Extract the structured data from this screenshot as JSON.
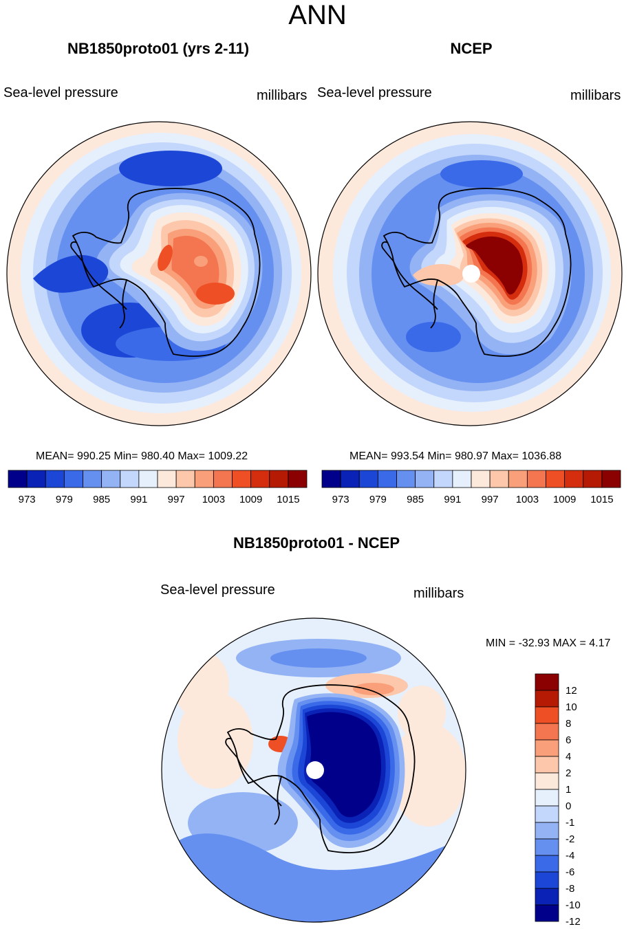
{
  "figure": {
    "title": "ANN"
  },
  "panels": {
    "model": {
      "title": "NB1850proto01 (yrs 2-11)",
      "variable": "Sea-level pressure",
      "units": "millibars",
      "stats": "MEAN= 990.25  Min= 980.40  Max= 1009.22"
    },
    "obs": {
      "title": "NCEP",
      "variable": "Sea-level pressure",
      "units": "millibars",
      "stats": "MEAN= 993.54  Min= 980.97  Max= 1036.88"
    },
    "diff": {
      "title": "NB1850proto01 - NCEP",
      "variable": "Sea-level pressure",
      "units": "millibars",
      "minmax": "MIN = -32.93 MAX =   4.17"
    }
  },
  "colorbar_abs": {
    "ticks": [
      "973",
      "979",
      "985",
      "991",
      "997",
      "1003",
      "1009",
      "1015"
    ],
    "colors": [
      "#00008b",
      "#0a22b5",
      "#1c46d6",
      "#3b6ae8",
      "#6590f0",
      "#93b3f5",
      "#c3d6fb",
      "#e6f0fd",
      "#fde8dc",
      "#fcc7aa",
      "#f9a07a",
      "#f47650",
      "#ee4f25",
      "#d42e0e",
      "#b51a05",
      "#8b0000"
    ]
  },
  "colorbar_diff": {
    "ticks": [
      "12",
      "10",
      "8",
      "6",
      "4",
      "2",
      "1",
      "0",
      "-1",
      "-2",
      "-4",
      "-6",
      "-8",
      "-10",
      "-12"
    ],
    "colors": [
      "#8b0000",
      "#b51a05",
      "#ee4f25",
      "#f47650",
      "#f9a07a",
      "#fcc7aa",
      "#fde8dc",
      "#e6f0fd",
      "#c3d6fb",
      "#93b3f5",
      "#6590f0",
      "#3b6ae8",
      "#1c46d6",
      "#0a22b5",
      "#00008b"
    ]
  },
  "fields": {
    "model": {
      "background": "#6590f0",
      "colors": [
        "#fde8dc",
        "#e6f0fd",
        "#c3d6fb",
        "#93b3f5",
        "#6590f0",
        "#3b6ae8",
        "#1c46d6",
        "#fcc7aa",
        "#f9a07a",
        "#f47650",
        "#ee4f25"
      ]
    },
    "obs": {
      "background": "#6590f0",
      "colors": [
        "#fde8dc",
        "#e6f0fd",
        "#c3d6fb",
        "#93b3f5",
        "#3b6ae8",
        "#1c46d6",
        "#fcc7aa",
        "#f9a07a",
        "#f47650",
        "#d42e0e",
        "#8b0000"
      ]
    },
    "diff": {
      "background": "#c3d6fb",
      "colors": [
        "#fde8dc",
        "#fcc7aa",
        "#e6f0fd",
        "#93b3f5",
        "#6590f0",
        "#3b6ae8",
        "#1c46d6",
        "#0a22b5",
        "#00008b",
        "#f9a07a",
        "#ee4f25"
      ]
    },
    "coastline_color": "#000000",
    "missing_color": "#ffffff"
  }
}
